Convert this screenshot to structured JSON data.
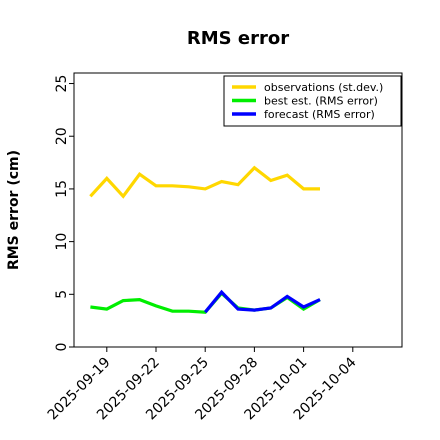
{
  "chart_data": {
    "type": "line",
    "title": "RMS error",
    "ylabel": "RMS error (cm)",
    "xlabel": "",
    "ylim": [
      0,
      26
    ],
    "xlim": [
      "2025-09-17",
      "2025-10-07"
    ],
    "yticks": [
      0,
      5,
      10,
      15,
      20,
      25
    ],
    "xticks": [
      {
        "label": "2025-09-19",
        "color": "#000000"
      },
      {
        "label": "2025-09-22",
        "color": "#000000"
      },
      {
        "label": "2025-09-25",
        "color": "#228B22"
      },
      {
        "label": "2025-09-28",
        "color": "#000000"
      },
      {
        "label": "2025-10-01",
        "color": "#000000"
      },
      {
        "label": "2025-10-04",
        "color": "#000000"
      }
    ],
    "grid": false,
    "legend_position": "top-right",
    "series": [
      {
        "name": "observations (st.dev.)",
        "color": "#FFD700",
        "x": [
          "2025-09-18",
          "2025-09-19",
          "2025-09-20",
          "2025-09-21",
          "2025-09-22",
          "2025-09-23",
          "2025-09-24",
          "2025-09-25",
          "2025-09-26",
          "2025-09-27",
          "2025-09-28",
          "2025-09-29",
          "2025-09-30",
          "2025-10-01",
          "2025-10-02"
        ],
        "y": [
          14.3,
          16.0,
          14.3,
          16.4,
          15.3,
          15.3,
          15.2,
          15.0,
          15.7,
          15.4,
          17.0,
          15.8,
          16.3,
          15.0,
          15.0
        ]
      },
      {
        "name": "best est. (RMS error)",
        "color": "#00EE00",
        "x": [
          "2025-09-18",
          "2025-09-19",
          "2025-09-20",
          "2025-09-21",
          "2025-09-22",
          "2025-09-23",
          "2025-09-24",
          "2025-09-25",
          "2025-09-26",
          "2025-09-27",
          "2025-09-28",
          "2025-09-29",
          "2025-09-30",
          "2025-10-01",
          "2025-10-02"
        ],
        "y": [
          3.8,
          3.6,
          4.4,
          4.5,
          3.9,
          3.4,
          3.4,
          3.3,
          5.1,
          3.7,
          3.5,
          3.7,
          4.7,
          3.6,
          4.5
        ]
      },
      {
        "name": "forecast (RMS error)",
        "color": "#0000FF",
        "x": [
          "2025-09-25",
          "2025-09-26",
          "2025-09-27",
          "2025-09-28",
          "2025-09-29",
          "2025-09-30",
          "2025-10-01",
          "2025-10-02"
        ],
        "y": [
          3.3,
          5.2,
          3.6,
          3.5,
          3.7,
          4.8,
          3.8,
          4.5
        ]
      }
    ]
  }
}
